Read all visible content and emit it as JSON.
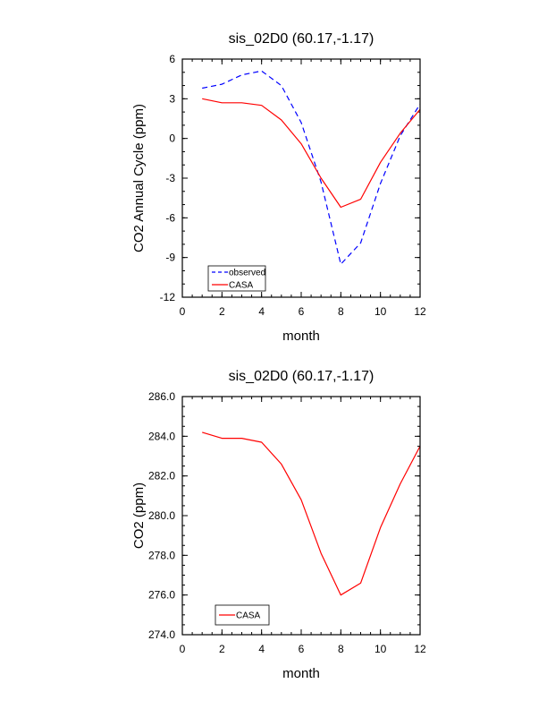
{
  "chart_data": [
    {
      "type": "line",
      "title": "sis_02D0 (60.17,-1.17)",
      "xlabel": "month",
      "ylabel": "CO2 Annual Cycle (ppm)",
      "xlim": [
        0,
        12
      ],
      "ylim": [
        -12,
        6
      ],
      "x_ticks": [
        0,
        2,
        4,
        6,
        8,
        10,
        12
      ],
      "y_ticks": [
        -12,
        -9,
        -6,
        -3,
        0,
        3,
        6
      ],
      "y_tick_labels": [
        "-12",
        "-9",
        "-6",
        "-3",
        "0",
        "3",
        "6"
      ],
      "grid": false,
      "legend_placement": "bottom-left",
      "x": [
        1,
        2,
        3,
        4,
        5,
        6,
        7,
        8,
        9,
        10,
        11,
        12
      ],
      "series": [
        {
          "name": "observed",
          "color": "#0000ff",
          "dash": true,
          "values": [
            3.8,
            4.1,
            4.8,
            5.1,
            4.0,
            1.2,
            -3.3,
            -9.5,
            -7.9,
            -3.4,
            0.2,
            2.6
          ]
        },
        {
          "name": "CASA",
          "color": "#ff0000",
          "dash": false,
          "values": [
            3.0,
            2.7,
            2.7,
            2.5,
            1.4,
            -0.4,
            -3.0,
            -5.2,
            -4.6,
            -1.8,
            0.4,
            2.2
          ]
        }
      ]
    },
    {
      "type": "line",
      "title": "sis_02D0 (60.17,-1.17)",
      "xlabel": "month",
      "ylabel": "CO2 (ppm)",
      "xlim": [
        0,
        12
      ],
      "ylim": [
        274,
        286
      ],
      "x_ticks": [
        0,
        2,
        4,
        6,
        8,
        10,
        12
      ],
      "y_ticks": [
        274,
        276,
        278,
        280,
        282,
        284,
        286
      ],
      "y_tick_labels": [
        "274.0",
        "276.0",
        "278.0",
        "280.0",
        "282.0",
        "284.0",
        "286.0"
      ],
      "grid": false,
      "legend_placement": "bottom-left",
      "x": [
        1,
        2,
        3,
        4,
        5,
        6,
        7,
        8,
        9,
        10,
        11,
        12
      ],
      "series": [
        {
          "name": "CASA",
          "color": "#ff0000",
          "dash": false,
          "values": [
            284.2,
            283.9,
            283.9,
            283.7,
            282.6,
            280.8,
            278.1,
            276.0,
            276.6,
            279.4,
            281.6,
            283.5
          ]
        }
      ]
    }
  ]
}
